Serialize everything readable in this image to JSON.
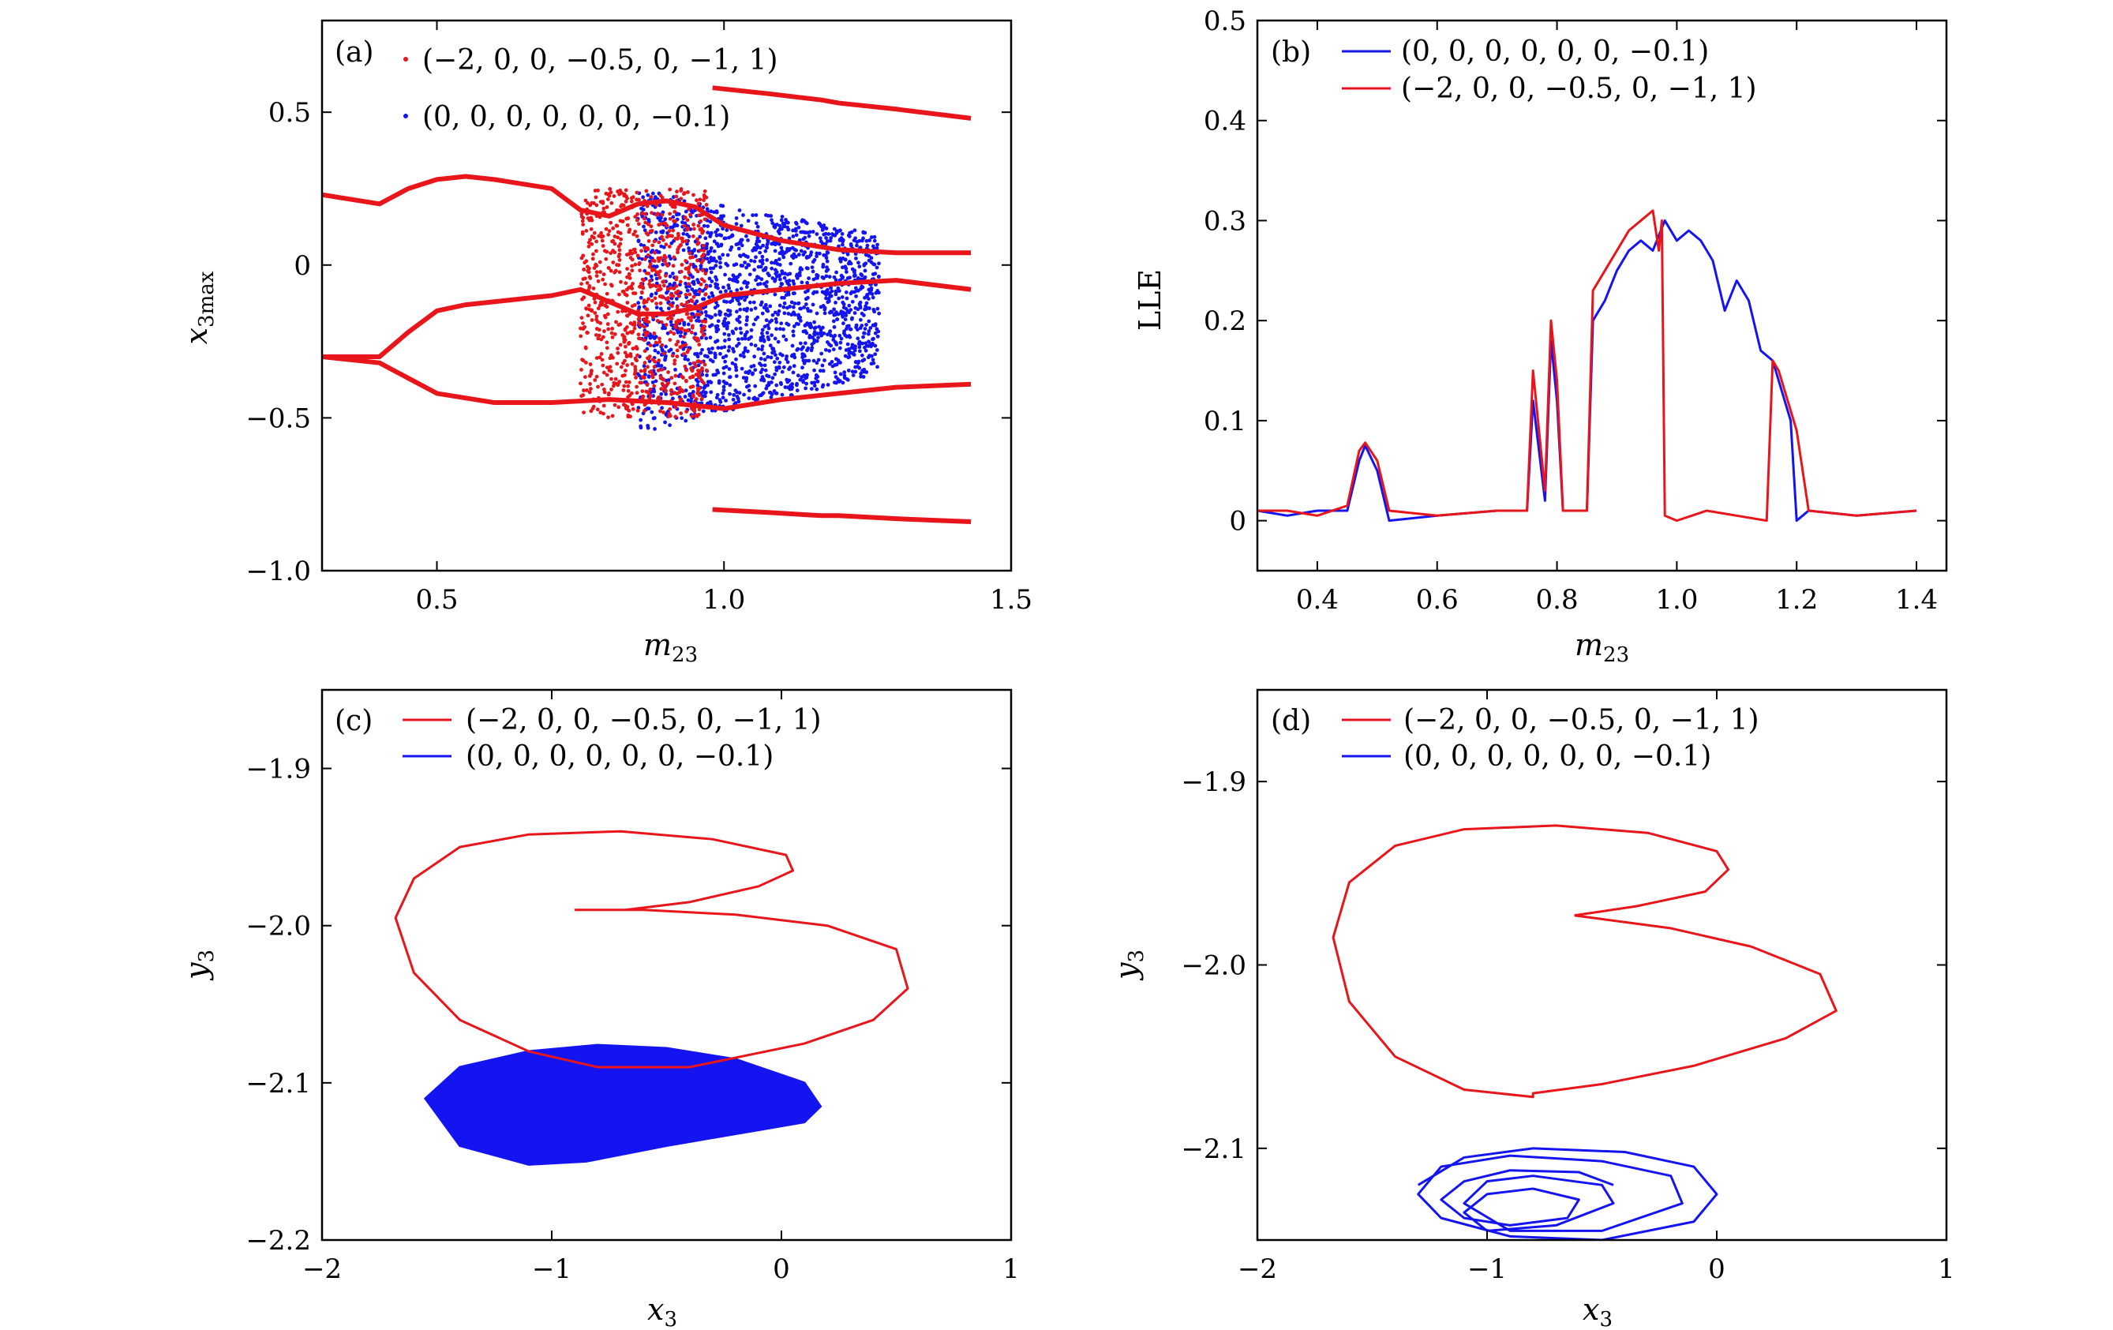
{
  "colors": {
    "red": "#e8151b",
    "blue": "#1414f0",
    "axis": "#000000"
  },
  "chart_data": [
    {
      "id": "a",
      "type": "scatter",
      "panel_label": "(a)",
      "title": "",
      "xlabel": "m",
      "xlabel_sub": "23",
      "ylabel": "x",
      "ylabel_sub": "3max",
      "xlim": [
        0.3,
        1.5
      ],
      "ylim": [
        -1.0,
        0.8
      ],
      "xticks": [
        0.5,
        1.0,
        1.5
      ],
      "xtick_labels": [
        "0.5",
        "1.0",
        "1.5"
      ],
      "yticks": [
        -1.0,
        -0.5,
        0,
        0.5
      ],
      "ytick_labels": [
        "−1.0",
        "−0.5",
        "0",
        "0.5"
      ],
      "legend_position": "top-left",
      "series": [
        {
          "name": "(−2, 0, 0, −0.5, 0, −1, 1)",
          "color": "red",
          "description": "bifurcation diagram branches",
          "branches": [
            {
              "x": [
                0.3,
                0.4,
                0.45,
                0.5,
                0.55,
                0.6,
                0.7,
                0.75,
                0.8,
                0.85,
                0.9,
                0.95,
                1.0,
                1.1,
                1.2,
                1.3,
                1.43
              ],
              "y": [
                0.23,
                0.2,
                0.25,
                0.28,
                0.29,
                0.28,
                0.25,
                0.18,
                0.16,
                0.2,
                0.21,
                0.19,
                0.13,
                0.08,
                0.05,
                0.04,
                0.04
              ]
            },
            {
              "x": [
                0.3,
                0.4,
                0.45,
                0.5,
                0.55,
                0.6,
                0.7,
                0.75,
                0.8,
                0.85,
                0.9,
                0.95,
                1.0,
                1.1,
                1.2,
                1.3,
                1.43
              ],
              "y": [
                -0.3,
                -0.3,
                -0.22,
                -0.15,
                -0.13,
                -0.12,
                -0.1,
                -0.08,
                -0.12,
                -0.16,
                -0.16,
                -0.14,
                -0.1,
                -0.08,
                -0.06,
                -0.05,
                -0.08
              ]
            },
            {
              "x": [
                0.98,
                1.08,
                1.17,
                1.2,
                1.3,
                1.43
              ],
              "y": [
                0.58,
                0.56,
                0.54,
                0.53,
                0.51,
                0.48
              ]
            },
            {
              "x": [
                0.98,
                1.08,
                1.17,
                1.2,
                1.3,
                1.43
              ],
              "y": [
                -0.8,
                -0.81,
                -0.82,
                -0.82,
                -0.83,
                -0.84
              ]
            },
            {
              "x": [
                0.3,
                0.4,
                0.5,
                0.6,
                0.7,
                0.8,
                0.9,
                1.0,
                1.1,
                1.2,
                1.3,
                1.43
              ],
              "y": [
                -0.3,
                -0.32,
                -0.42,
                -0.45,
                -0.45,
                -0.44,
                -0.45,
                -0.47,
                -0.44,
                -0.42,
                -0.4,
                -0.39
              ]
            }
          ]
        },
        {
          "name": "(0, 0, 0, 0, 0, 0, −0.1)",
          "color": "blue",
          "description": "chaotic scatter band",
          "bands": [
            {
              "x0": 0.85,
              "x1": 1.27,
              "y0": 0.25,
              "y1": -0.55
            }
          ]
        }
      ]
    },
    {
      "id": "b",
      "type": "line",
      "panel_label": "(b)",
      "title": "",
      "xlabel": "m",
      "xlabel_sub": "23",
      "ylabel": "LLE",
      "ylabel_sub": "",
      "xlim": [
        0.3,
        1.45
      ],
      "ylim": [
        -0.05,
        0.5
      ],
      "xticks": [
        0.4,
        0.6,
        0.8,
        1.0,
        1.2,
        1.4
      ],
      "xtick_labels": [
        "0.4",
        "0.6",
        "0.8",
        "1.0",
        "1.2",
        "1.4"
      ],
      "yticks": [
        0,
        0.1,
        0.2,
        0.3,
        0.4,
        0.5
      ],
      "ytick_labels": [
        "0",
        "0.1",
        "0.2",
        "0.3",
        "0.4",
        "0.5"
      ],
      "legend_position": "top-left",
      "series": [
        {
          "name": "(0, 0, 0, 0, 0, 0, −0.1)",
          "color": "blue",
          "x": [
            0.3,
            0.35,
            0.4,
            0.45,
            0.47,
            0.48,
            0.5,
            0.52,
            0.6,
            0.7,
            0.75,
            0.76,
            0.78,
            0.79,
            0.8,
            0.81,
            0.83,
            0.85,
            0.86,
            0.88,
            0.9,
            0.92,
            0.94,
            0.96,
            0.98,
            1.0,
            1.02,
            1.04,
            1.06,
            1.08,
            1.1,
            1.12,
            1.14,
            1.16,
            1.18,
            1.19,
            1.2,
            1.22,
            1.3,
            1.4
          ],
          "y": [
            0.01,
            0.005,
            0.01,
            0.01,
            0.06,
            0.075,
            0.05,
            0.0,
            0.005,
            0.01,
            0.01,
            0.12,
            0.02,
            0.18,
            0.12,
            0.01,
            0.01,
            0.01,
            0.2,
            0.22,
            0.25,
            0.27,
            0.28,
            0.27,
            0.3,
            0.28,
            0.29,
            0.28,
            0.26,
            0.21,
            0.24,
            0.22,
            0.17,
            0.16,
            0.12,
            0.1,
            0.0,
            0.01,
            0.005,
            0.01
          ]
        },
        {
          "name": "(−2, 0, 0, −0.5, 0, −1, 1)",
          "color": "red",
          "x": [
            0.3,
            0.35,
            0.4,
            0.45,
            0.47,
            0.48,
            0.5,
            0.52,
            0.6,
            0.7,
            0.75,
            0.76,
            0.78,
            0.79,
            0.8,
            0.81,
            0.83,
            0.85,
            0.86,
            0.88,
            0.9,
            0.92,
            0.94,
            0.96,
            0.97,
            0.975,
            0.98,
            1.0,
            1.05,
            1.1,
            1.15,
            1.16,
            1.17,
            1.18,
            1.19,
            1.2,
            1.22,
            1.3,
            1.4
          ],
          "y": [
            0.01,
            0.01,
            0.005,
            0.015,
            0.07,
            0.078,
            0.06,
            0.01,
            0.005,
            0.01,
            0.01,
            0.15,
            0.03,
            0.2,
            0.14,
            0.01,
            0.01,
            0.01,
            0.23,
            0.25,
            0.27,
            0.29,
            0.3,
            0.31,
            0.27,
            0.3,
            0.005,
            0.0,
            0.01,
            0.005,
            0.0,
            0.16,
            0.15,
            0.13,
            0.11,
            0.09,
            0.01,
            0.005,
            0.01
          ]
        }
      ]
    },
    {
      "id": "c",
      "type": "line",
      "panel_label": "(c)",
      "title": "",
      "xlabel": "x",
      "xlabel_sub": "3",
      "ylabel": "y",
      "ylabel_sub": "3",
      "xlim": [
        -2,
        1
      ],
      "ylim": [
        -2.2,
        -1.85
      ],
      "xticks": [
        -2,
        -1,
        0,
        1
      ],
      "xtick_labels": [
        "−2",
        "−1",
        "0",
        "1"
      ],
      "yticks": [
        -2.2,
        -2.1,
        -2.0,
        -1.9
      ],
      "ytick_labels": [
        "−2.2",
        "−2.1",
        "−2.0",
        "−1.9"
      ],
      "legend_position": "top-left",
      "series": [
        {
          "name": "(−2, 0, 0, −0.5, 0, −1, 1)",
          "color": "red",
          "x": [
            -0.68,
            -0.4,
            -0.1,
            0.05,
            0.02,
            -0.3,
            -0.7,
            -1.1,
            -1.4,
            -1.6,
            -1.68,
            -1.6,
            -1.4,
            -1.1,
            -0.8,
            -0.4,
            0.1,
            0.4,
            0.55,
            0.5,
            0.2,
            -0.2,
            -0.6,
            -0.9
          ],
          "y": [
            -1.99,
            -1.985,
            -1.975,
            -1.965,
            -1.955,
            -1.945,
            -1.94,
            -1.942,
            -1.95,
            -1.97,
            -1.995,
            -2.03,
            -2.06,
            -2.08,
            -2.09,
            -2.09,
            -2.075,
            -2.06,
            -2.04,
            -2.015,
            -2.0,
            -1.993,
            -1.99,
            -1.99
          ]
        },
        {
          "name": "(0, 0, 0, 0, 0, 0, −0.1)",
          "color": "blue",
          "description": "dense chaotic attractor region",
          "x": [
            -1.55,
            -1.4,
            -1.1,
            -0.8,
            -0.5,
            -0.2,
            0.1,
            0.17,
            0.1,
            -0.1,
            -0.5,
            -0.85,
            -1.1,
            -1.4,
            -1.55
          ],
          "y": [
            -2.11,
            -2.09,
            -2.08,
            -2.076,
            -2.078,
            -2.085,
            -2.1,
            -2.115,
            -2.125,
            -2.13,
            -2.14,
            -2.15,
            -2.152,
            -2.14,
            -2.11
          ]
        }
      ]
    },
    {
      "id": "d",
      "type": "line",
      "panel_label": "(d)",
      "title": "",
      "xlabel": "x",
      "xlabel_sub": "3",
      "ylabel": "y",
      "ylabel_sub": "3",
      "xlim": [
        -2,
        1
      ],
      "ylim": [
        -2.15,
        -1.85
      ],
      "xticks": [
        -2,
        -1,
        0,
        1
      ],
      "xtick_labels": [
        "−2",
        "−1",
        "0",
        "1"
      ],
      "yticks": [
        -2.1,
        -2.0,
        -1.9
      ],
      "ytick_labels": [
        "−2.1",
        "−2.0",
        "−1.9"
      ],
      "legend_position": "top-left",
      "series": [
        {
          "name": "(−2, 0, 0, −0.5, 0, −1, 1)",
          "color": "red",
          "x": [
            -0.62,
            -0.35,
            -0.05,
            0.05,
            0.0,
            -0.3,
            -0.7,
            -1.1,
            -1.4,
            -1.6,
            -1.67,
            -1.6,
            -1.4,
            -1.1,
            -0.8,
            -0.8,
            -0.5,
            -0.1,
            0.3,
            0.52,
            0.45,
            0.15,
            -0.2,
            -0.5,
            -0.62
          ],
          "y": [
            -1.973,
            -1.968,
            -1.96,
            -1.948,
            -1.938,
            -1.928,
            -1.924,
            -1.926,
            -1.935,
            -1.955,
            -1.985,
            -2.02,
            -2.05,
            -2.068,
            -2.072,
            -2.07,
            -2.065,
            -2.055,
            -2.04,
            -2.025,
            -2.005,
            -1.99,
            -1.98,
            -1.975,
            -1.973
          ]
        },
        {
          "name": "(0, 0, 0, 0, 0, 0, −0.1)",
          "color": "blue",
          "description": "periodic limit cycle",
          "x": [
            -1.3,
            -1.1,
            -0.8,
            -0.4,
            -0.1,
            0.0,
            -0.1,
            -0.5,
            -0.9,
            -1.2,
            -1.3,
            -1.2,
            -0.9,
            -0.5,
            -0.2,
            -0.15,
            -0.5,
            -0.9,
            -1.1,
            -1.0,
            -0.8,
            -0.5,
            -0.45,
            -0.7,
            -1.0,
            -1.1,
            -1.0,
            -0.8,
            -0.6,
            -0.65,
            -0.9,
            -1.1,
            -1.2,
            -1.1,
            -0.9,
            -0.6,
            -0.45
          ],
          "y": [
            -2.12,
            -2.105,
            -2.1,
            -2.102,
            -2.11,
            -2.125,
            -2.14,
            -2.15,
            -2.148,
            -2.138,
            -2.125,
            -2.11,
            -2.104,
            -2.107,
            -2.115,
            -2.13,
            -2.145,
            -2.145,
            -2.13,
            -2.118,
            -2.115,
            -2.12,
            -2.13,
            -2.142,
            -2.145,
            -2.135,
            -2.125,
            -2.122,
            -2.128,
            -2.138,
            -2.142,
            -2.138,
            -2.128,
            -2.118,
            -2.112,
            -2.113,
            -2.12
          ]
        }
      ]
    }
  ]
}
